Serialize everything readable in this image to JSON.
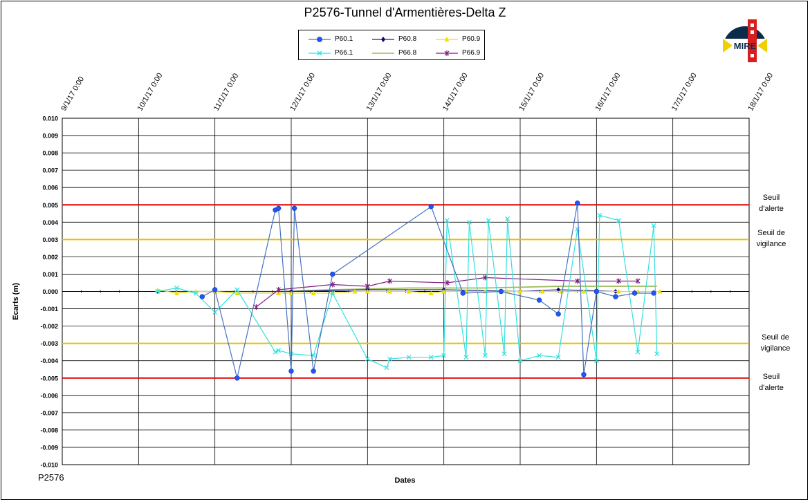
{
  "chart_data": {
    "type": "line",
    "title": "P2576-Tunnel  d'Armentières-Delta  Z",
    "xlabel": "Dates",
    "ylabel": "Ecarts (m)",
    "footer": "P2576",
    "x_ticks": [
      "9/1/17 0:00",
      "10/1/17 0:00",
      "11/1/17 0:00",
      "12/1/17 0:00",
      "13/1/17 0:00",
      "14/1/17 0:00",
      "15/1/17 0:00",
      "16/1/17 0:00",
      "17/1/17 0:00",
      "18/1/17 0:00"
    ],
    "y_ticks": [
      "0.010",
      "0.009",
      "0.008",
      "0.007",
      "0.006",
      "0.005",
      "0.004",
      "0.003",
      "0.002",
      "0.001",
      "0.000",
      "-0.001",
      "-0.002",
      "-0.003",
      "-0.004",
      "-0.005",
      "-0.006",
      "-0.007",
      "-0.008",
      "-0.009",
      "-0.010"
    ],
    "xlim": [
      "9/1/17 0:00",
      "18/1/17 0:00"
    ],
    "ylim": [
      -0.01,
      0.01
    ],
    "grid": true,
    "legend_position": "top-center",
    "thresholds": [
      {
        "value": 0.005,
        "label_1": "Seuil",
        "label_2": "d'alerte",
        "color": "#e00000"
      },
      {
        "value": 0.003,
        "label_1": "Seuil de",
        "label_2": "vigilance",
        "color": "#e6c000"
      },
      {
        "value": -0.003,
        "label_1": "Seuil de",
        "label_2": "vigilance",
        "color": "#e6c000"
      },
      {
        "value": -0.005,
        "label_1": "Seuil",
        "label_2": "d'alerte",
        "color": "#e00000"
      }
    ],
    "series": [
      {
        "name": "P60.1",
        "color": "#4472c4",
        "marker": "circle",
        "x": [
          "10/1/17 20:00",
          "11/1/17 0:00",
          "11/1/17 7:00",
          "11/1/17 19:00",
          "11/1/17 20:00",
          "12/1/17 0:00",
          "12/1/17 1:00",
          "12/1/17 7:00",
          "12/1/17 13:00",
          "13/1/17 20:00",
          "14/1/17 6:00",
          "14/1/17 18:00",
          "15/1/17 6:00",
          "15/1/17 12:00",
          "15/1/17 18:00",
          "15/1/17 20:00",
          "16/1/17 0:00",
          "16/1/17 6:00",
          "16/1/17 12:00",
          "16/1/17 18:00"
        ],
        "y": [
          -0.0003,
          0.0001,
          -0.005,
          0.0047,
          0.0048,
          -0.0046,
          0.0048,
          -0.0046,
          0.001,
          0.0049,
          -0.0001,
          0.0,
          -0.0005,
          -0.0013,
          0.0051,
          -0.0048,
          0.0,
          -0.0003,
          -0.0001,
          -0.0001
        ]
      },
      {
        "name": "P60.8",
        "color": "#1f1f8f",
        "marker": "diamond",
        "x": [
          "10/1/17 6:00",
          "11/1/17 0:00",
          "12/1/17 0:00",
          "13/1/17 0:00",
          "14/1/17 0:00",
          "15/1/17 0:00",
          "15/1/17 12:00",
          "16/1/17 6:00"
        ],
        "y": [
          0.0,
          0.0,
          0.0,
          0.0001,
          0.0001,
          0.0,
          0.0001,
          0.0
        ]
      },
      {
        "name": "P60.9",
        "color": "#f0e000",
        "marker": "triangle",
        "x": [
          "10/1/17 6:00",
          "10/1/17 12:00",
          "10/1/17 18:00",
          "11/1/17 0:00",
          "11/1/17 7:00",
          "11/1/17 20:00",
          "12/1/17 0:00",
          "12/1/17 7:00",
          "12/1/17 13:00",
          "12/1/17 20:00",
          "13/1/17 0:00",
          "13/1/17 7:00",
          "13/1/17 13:00",
          "13/1/17 20:00",
          "14/1/17 0:00",
          "14/1/17 7:00",
          "14/1/17 13:00",
          "14/1/17 20:00",
          "15/1/17 0:00",
          "15/1/17 7:00",
          "15/1/17 13:00",
          "15/1/17 20:00",
          "16/1/17 0:00",
          "16/1/17 7:00",
          "16/1/17 13:00",
          "16/1/17 20:00"
        ],
        "y": [
          0.0001,
          -0.0001,
          0.0,
          0.0,
          -0.0001,
          -0.0001,
          -0.0001,
          -0.0001,
          -0.0001,
          0.0,
          0.0,
          0.0,
          0.0,
          -0.0001,
          0.0,
          0.0,
          0.0,
          0.0,
          0.0,
          0.0,
          0.0,
          0.0,
          0.0,
          0.0,
          0.0,
          0.0
        ]
      },
      {
        "name": "P66.1",
        "color": "#33e0e0",
        "marker": "x",
        "x": [
          "10/1/17 6:00",
          "10/1/17 12:00",
          "10/1/17 18:00",
          "11/1/17 0:00",
          "11/1/17 7:00",
          "11/1/17 19:00",
          "11/1/17 20:00",
          "12/1/17 0:00",
          "12/1/17 7:00",
          "12/1/17 13:00",
          "13/1/17 0:00",
          "13/1/17 6:00",
          "13/1/17 7:00",
          "13/1/17 13:00",
          "13/1/17 20:00",
          "14/1/17 0:00",
          "14/1/17 1:00",
          "14/1/17 7:00",
          "14/1/17 8:00",
          "14/1/17 13:00",
          "14/1/17 14:00",
          "14/1/17 19:00",
          "14/1/17 20:00",
          "15/1/17 0:00",
          "15/1/17 6:00",
          "15/1/17 12:00",
          "15/1/17 18:00",
          "16/1/17 0:00",
          "16/1/17 1:00",
          "16/1/17 7:00",
          "16/1/17 13:00",
          "16/1/17 18:00",
          "16/1/17 19:00"
        ],
        "y": [
          0.0,
          0.0002,
          -0.0001,
          -0.0012,
          0.0001,
          -0.0035,
          -0.0034,
          -0.0036,
          -0.0037,
          -0.0001,
          -0.0039,
          -0.0044,
          -0.0039,
          -0.0038,
          -0.0038,
          -0.0037,
          0.0041,
          -0.0038,
          0.004,
          -0.0037,
          0.0041,
          -0.0036,
          0.0042,
          -0.004,
          -0.0037,
          -0.0038,
          0.0036,
          -0.004,
          0.0044,
          0.0041,
          -0.0035,
          0.0038,
          -0.0036
        ]
      },
      {
        "name": "P66.8",
        "color": "#9bbb59",
        "marker": "none",
        "x": [
          "11/1/17 20:00",
          "12/1/17 13:00",
          "13/1/17 13:00",
          "14/1/17 13:00",
          "15/1/17 13:00",
          "16/1/17 19:00"
        ],
        "y": [
          0.0,
          0.0001,
          0.0002,
          0.0002,
          0.0003,
          0.0003
        ]
      },
      {
        "name": "P66.9",
        "color": "#7f1f7f",
        "marker": "star",
        "x": [
          "11/1/17 13:00",
          "11/1/17 20:00",
          "12/1/17 13:00",
          "13/1/17 0:00",
          "13/1/17 7:00",
          "14/1/17 1:00",
          "14/1/17 13:00",
          "15/1/17 18:00",
          "16/1/17 7:00",
          "16/1/17 13:00"
        ],
        "y": [
          -0.0009,
          0.0001,
          0.0004,
          0.0003,
          0.0006,
          0.0005,
          0.0008,
          0.0006,
          0.0006,
          0.0006
        ]
      }
    ]
  },
  "logo": {
    "text": "MIRE",
    "colors": {
      "dark": "#0c2a4a",
      "red": "#d81e1e",
      "yellow": "#f0d000"
    }
  }
}
